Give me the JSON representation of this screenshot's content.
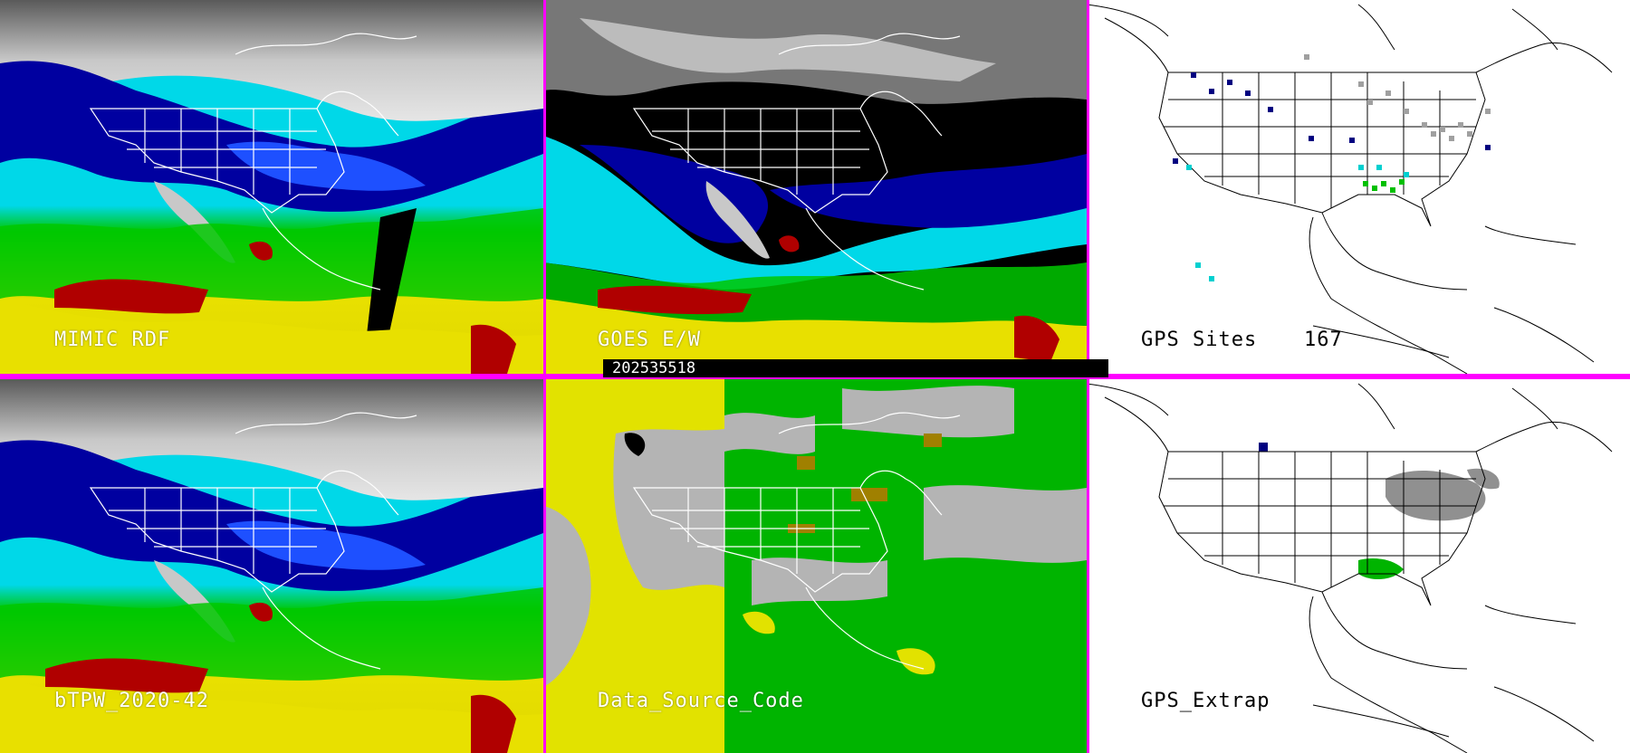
{
  "panels": [
    {
      "id": "mimic",
      "label": "MIMIC RDF",
      "kind": "tpw"
    },
    {
      "id": "goes",
      "label": "GOES E/W",
      "kind": "goes"
    },
    {
      "id": "gps_sites",
      "label": "GPS Sites",
      "count": "167",
      "kind": "gps"
    },
    {
      "id": "btpw",
      "label": "bTPW_2020-42",
      "kind": "tpw"
    },
    {
      "id": "data_source",
      "label": "Data_Source_Code",
      "kind": "source"
    },
    {
      "id": "gps_extrap",
      "label": "GPS_Extrap",
      "kind": "gpsx"
    }
  ],
  "timestamp": "202535518",
  "colors": {
    "divider": "#ff00ff",
    "tpw_scale": [
      "#c8c8c8",
      "#0000a0",
      "#1e50ff",
      "#00d8e8",
      "#00c800",
      "#e8e000",
      "#b00000"
    ],
    "source_scale": [
      "#b4b4b4",
      "#e2e200",
      "#00b400",
      "#a08000",
      "#000000"
    ],
    "gps_marker_colors": [
      "#000080",
      "#00d0d0",
      "#00c000",
      "#a0a0a0"
    ]
  }
}
